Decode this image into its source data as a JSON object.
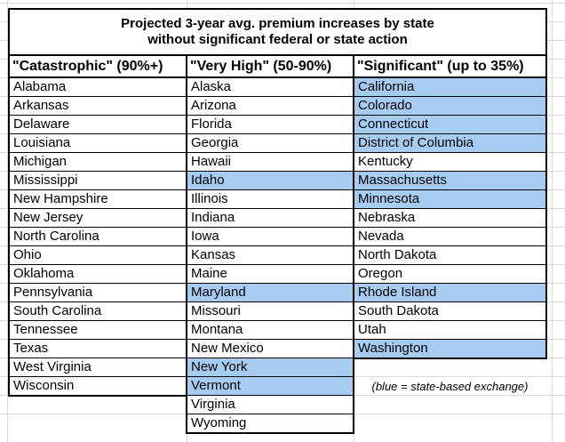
{
  "table": {
    "title_line1": "Projected 3-year avg. premium increases by state",
    "title_line2": "without significant federal or state action",
    "columns": [
      {
        "header": "\"Catastrophic\" (90%+)",
        "states": [
          {
            "name": "Alabama",
            "highlighted": false
          },
          {
            "name": "Arkansas",
            "highlighted": false
          },
          {
            "name": "Delaware",
            "highlighted": false
          },
          {
            "name": "Louisiana",
            "highlighted": false
          },
          {
            "name": "Michigan",
            "highlighted": false
          },
          {
            "name": "Mississippi",
            "highlighted": false
          },
          {
            "name": "New Hampshire",
            "highlighted": false
          },
          {
            "name": "New Jersey",
            "highlighted": false
          },
          {
            "name": "North Carolina",
            "highlighted": false
          },
          {
            "name": "Ohio",
            "highlighted": false
          },
          {
            "name": "Oklahoma",
            "highlighted": false
          },
          {
            "name": "Pennsylvania",
            "highlighted": false
          },
          {
            "name": "South Carolina",
            "highlighted": false
          },
          {
            "name": "Tennessee",
            "highlighted": false
          },
          {
            "name": "Texas",
            "highlighted": false
          },
          {
            "name": "West Virginia",
            "highlighted": false
          },
          {
            "name": "Wisconsin",
            "highlighted": false
          }
        ]
      },
      {
        "header": "\"Very High\" (50-90%)",
        "states": [
          {
            "name": "Alaska",
            "highlighted": false
          },
          {
            "name": "Arizona",
            "highlighted": false
          },
          {
            "name": "Florida",
            "highlighted": false
          },
          {
            "name": "Georgia",
            "highlighted": false
          },
          {
            "name": "Hawaii",
            "highlighted": false
          },
          {
            "name": "Idaho",
            "highlighted": true
          },
          {
            "name": "Illinois",
            "highlighted": false
          },
          {
            "name": "Indiana",
            "highlighted": false
          },
          {
            "name": "Iowa",
            "highlighted": false
          },
          {
            "name": "Kansas",
            "highlighted": false
          },
          {
            "name": "Maine",
            "highlighted": false
          },
          {
            "name": "Maryland",
            "highlighted": true
          },
          {
            "name": "Missouri",
            "highlighted": false
          },
          {
            "name": "Montana",
            "highlighted": false
          },
          {
            "name": "New Mexico",
            "highlighted": false
          },
          {
            "name": "New York",
            "highlighted": true
          },
          {
            "name": "Vermont",
            "highlighted": true
          },
          {
            "name": "Virginia",
            "highlighted": false
          },
          {
            "name": "Wyoming",
            "highlighted": false
          }
        ]
      },
      {
        "header": "\"Significant\" (up to 35%)",
        "states": [
          {
            "name": "California",
            "highlighted": true
          },
          {
            "name": "Colorado",
            "highlighted": true
          },
          {
            "name": "Connecticut",
            "highlighted": true
          },
          {
            "name": "District of Columbia",
            "highlighted": true
          },
          {
            "name": "Kentucky",
            "highlighted": false
          },
          {
            "name": "Massachusetts",
            "highlighted": true
          },
          {
            "name": "Minnesota",
            "highlighted": true
          },
          {
            "name": "Nebraska",
            "highlighted": false
          },
          {
            "name": "Nevada",
            "highlighted": false
          },
          {
            "name": "North Dakota",
            "highlighted": false
          },
          {
            "name": "Oregon",
            "highlighted": false
          },
          {
            "name": "Rhode Island",
            "highlighted": true
          },
          {
            "name": "South Dakota",
            "highlighted": false
          },
          {
            "name": "Utah",
            "highlighted": false
          },
          {
            "name": "Washington",
            "highlighted": true
          }
        ]
      }
    ],
    "note": "(blue = state-based exchange)"
  },
  "colors": {
    "highlight_blue": "#A6CCF2",
    "gridline_gray": "#D9D9D9",
    "table_border": "#000000",
    "cell_background": "#FFFFFF"
  }
}
